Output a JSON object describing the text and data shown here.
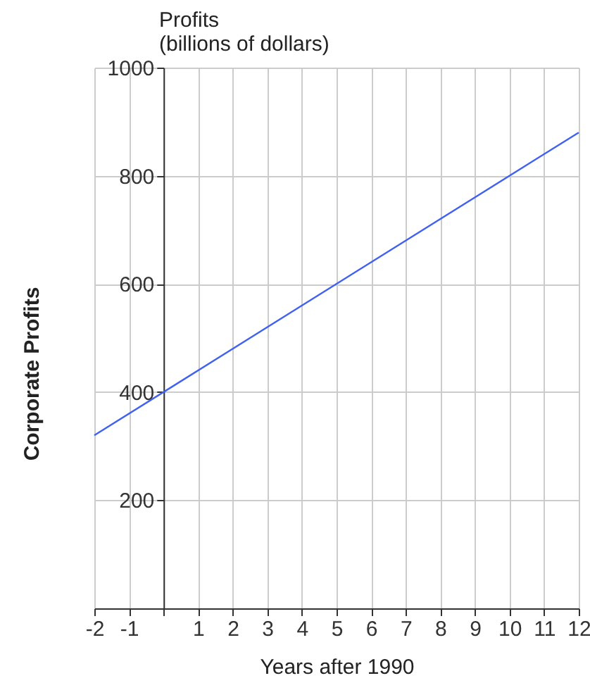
{
  "chart_data": {
    "type": "line",
    "title": "Profits",
    "subtitle": "(billions of dollars)",
    "xlabel": "Years after 1990",
    "ylabel": "Corporate Profits",
    "x": [
      -2,
      12
    ],
    "series": [
      {
        "color": "#4060f0",
        "values": [
          320,
          880
        ]
      }
    ],
    "xlim": [
      -2,
      12
    ],
    "ylim": [
      0,
      1000
    ],
    "xticks": [
      -2,
      -1,
      {
        "value": 0,
        "label": null
      },
      1,
      2,
      3,
      4,
      5,
      6,
      7,
      8,
      9,
      10,
      11,
      12
    ],
    "yticks": [
      200,
      400,
      600,
      800,
      1000
    ],
    "grid": true,
    "marker": "none",
    "line_style": "solid"
  }
}
